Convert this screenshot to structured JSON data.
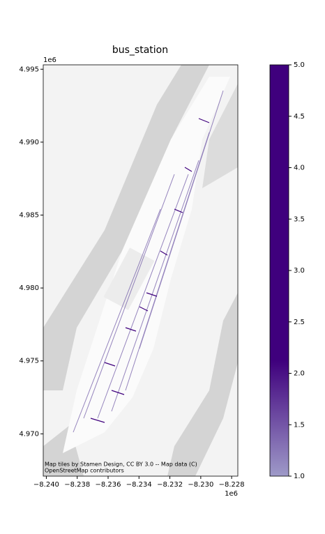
{
  "map": {
    "title": "bus_station",
    "x_offset_label": "1e6",
    "y_offset_label": "1e6",
    "xlim": [
      -8.2402,
      -8.2276
    ],
    "ylim": [
      4.9671,
      4.9953
    ],
    "xticks": [
      {
        "value": -8.24,
        "label": "−8.240"
      },
      {
        "value": -8.238,
        "label": "−8.238"
      },
      {
        "value": -8.236,
        "label": "−8.236"
      },
      {
        "value": -8.234,
        "label": "−8.234"
      },
      {
        "value": -8.232,
        "label": "−8.232"
      },
      {
        "value": -8.23,
        "label": "−8.230"
      },
      {
        "value": -8.228,
        "label": "−8.228"
      }
    ],
    "yticks": [
      {
        "value": 4.97,
        "label": "4.970"
      },
      {
        "value": 4.975,
        "label": "4.975"
      },
      {
        "value": 4.98,
        "label": "4.980"
      },
      {
        "value": 4.985,
        "label": "4.985"
      },
      {
        "value": 4.99,
        "label": "4.990"
      },
      {
        "value": 4.995,
        "label": "4.995"
      }
    ],
    "colorbar": {
      "lim": [
        1,
        5
      ],
      "colors": [
        "#9e9ac8",
        "#3f007d"
      ],
      "ticks": [
        {
          "value": 1.0,
          "label": "1.0"
        },
        {
          "value": 1.5,
          "label": "1.5"
        },
        {
          "value": 2.0,
          "label": "2.0"
        },
        {
          "value": 2.5,
          "label": "2.5"
        },
        {
          "value": 3.0,
          "label": "3.0"
        },
        {
          "value": 3.5,
          "label": "3.5"
        },
        {
          "value": 4.0,
          "label": "4.0"
        },
        {
          "value": 4.5,
          "label": "4.5"
        },
        {
          "value": 5.0,
          "label": "5.0"
        }
      ]
    },
    "attribution": [
      "Map tiles by Stamen Design, CC BY 3.0 -- Map data (C)",
      "OpenStreetMap contributors"
    ]
  }
}
